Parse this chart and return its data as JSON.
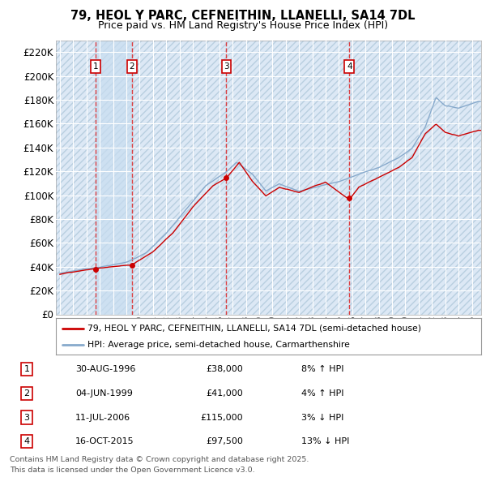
{
  "title": "79, HEOL Y PARC, CEFNEITHIN, LLANELLI, SA14 7DL",
  "subtitle": "Price paid vs. HM Land Registry's House Price Index (HPI)",
  "ylim": [
    0,
    230000
  ],
  "yticks": [
    0,
    20000,
    40000,
    60000,
    80000,
    100000,
    120000,
    140000,
    160000,
    180000,
    200000,
    220000
  ],
  "xlim_start": 1993.7,
  "xlim_end": 2025.7,
  "background_color": "#ffffff",
  "plot_bg_color": "#dce8f5",
  "hatch_edgecolor": "#b8cfe0",
  "grid_color": "#ffffff",
  "sale_dates": [
    1996.664,
    1999.42,
    2006.53,
    2015.79
  ],
  "sale_prices": [
    38000,
    41000,
    115000,
    97500
  ],
  "sale_labels": [
    "1",
    "2",
    "3",
    "4"
  ],
  "shade_between_1_2": true,
  "legend_line1": "79, HEOL Y PARC, CEFNEITHIN, LLANELLI, SA14 7DL (semi-detached house)",
  "legend_line2": "HPI: Average price, semi-detached house, Carmarthenshire",
  "table_rows": [
    [
      "1",
      "30-AUG-1996",
      "£38,000",
      "8% ↑ HPI"
    ],
    [
      "2",
      "04-JUN-1999",
      "£41,000",
      "4% ↑ HPI"
    ],
    [
      "3",
      "11-JUL-2006",
      "£115,000",
      "3% ↓ HPI"
    ],
    [
      "4",
      "16-OCT-2015",
      "£97,500",
      "13% ↓ HPI"
    ]
  ],
  "footer": "Contains HM Land Registry data © Crown copyright and database right 2025.\nThis data is licensed under the Open Government Licence v3.0.",
  "red_color": "#cc0000",
  "blue_color": "#88aacc",
  "shade_color": "#c8ddf0"
}
